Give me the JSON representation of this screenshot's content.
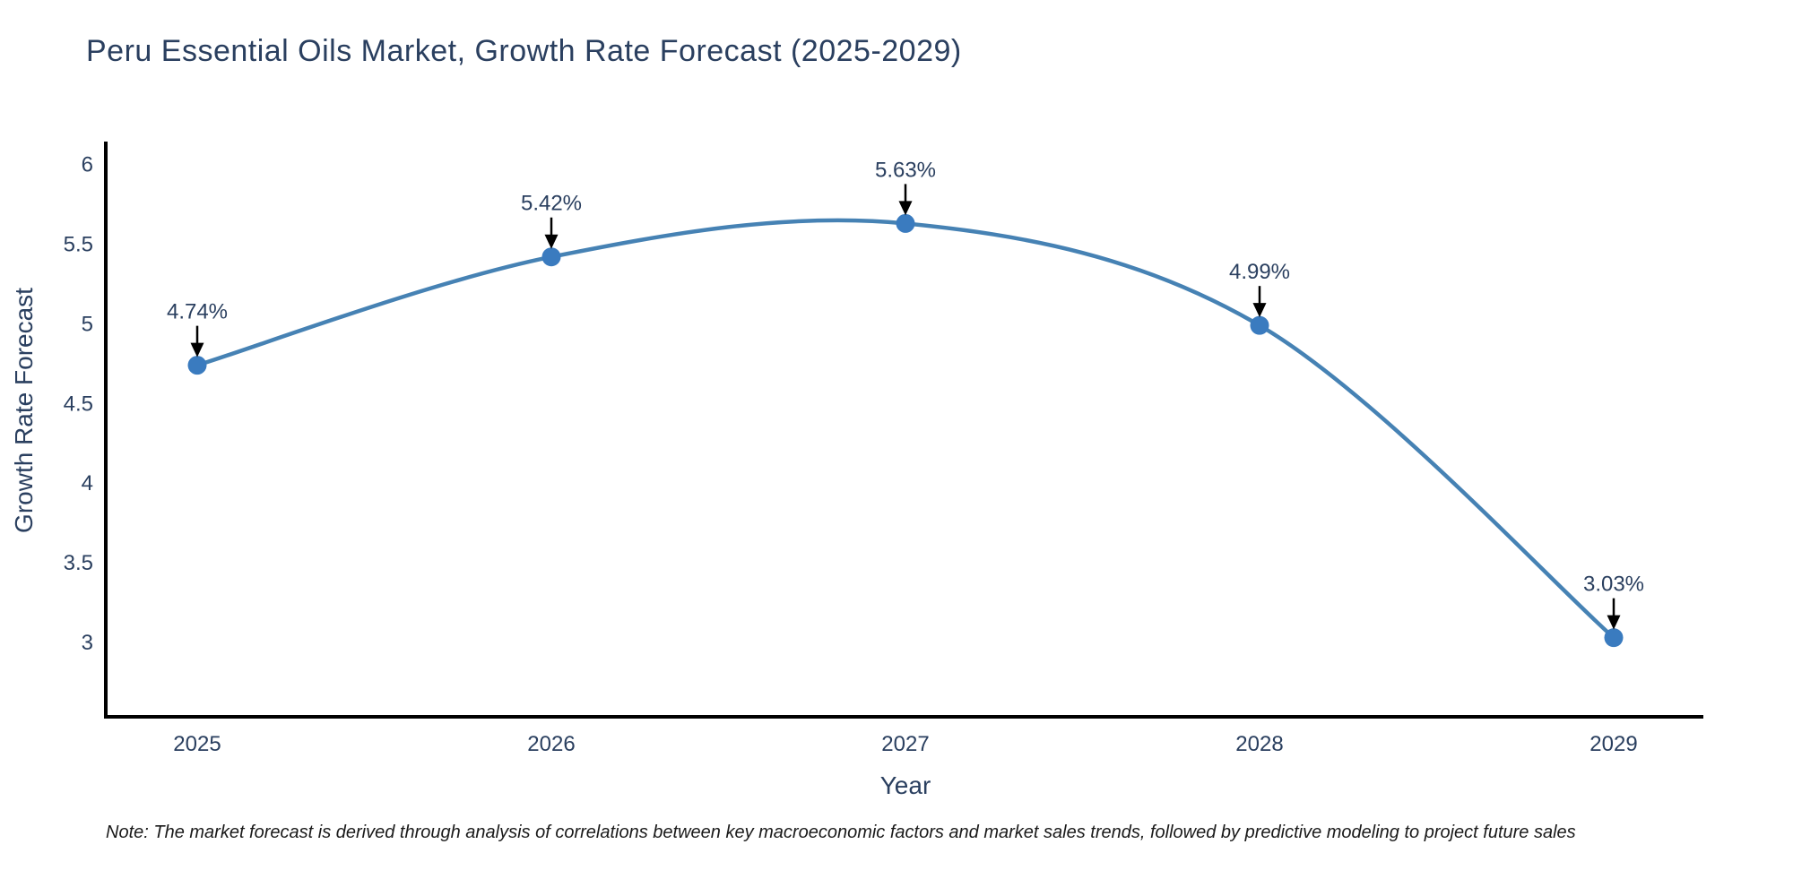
{
  "title": "Peru Essential Oils Market, Growth Rate Forecast (2025-2029)",
  "note": "Note: The market forecast is derived through analysis of correlations between key macroeconomic factors and market sales trends, followed by predictive modeling to project future sales",
  "chart_data": {
    "type": "line",
    "title": "Peru Essential Oils Market, Growth Rate Forecast (2025-2029)",
    "xlabel": "Year",
    "ylabel": "Growth Rate Forecast",
    "x": [
      2025,
      2026,
      2027,
      2028,
      2029
    ],
    "values": [
      4.74,
      5.42,
      5.63,
      4.99,
      3.03
    ],
    "point_labels": [
      "4.74%",
      "5.42%",
      "5.63%",
      "4.99%",
      "3.03%"
    ],
    "x_tick_labels": [
      "2025",
      "2026",
      "2027",
      "2028",
      "2029"
    ],
    "y_ticks": [
      3,
      3.5,
      4,
      4.5,
      5,
      5.5,
      6
    ],
    "ylim": [
      2.5,
      6.15
    ],
    "line_shape": "spline",
    "grid": false,
    "legend": "none",
    "annotations_have_arrows": true,
    "colors": {
      "line": "#4682b4",
      "marker": "#3a7bbf",
      "axis": "#000000",
      "text": "#2a3f5f",
      "arrow": "#000000",
      "background": "#ffffff"
    }
  }
}
